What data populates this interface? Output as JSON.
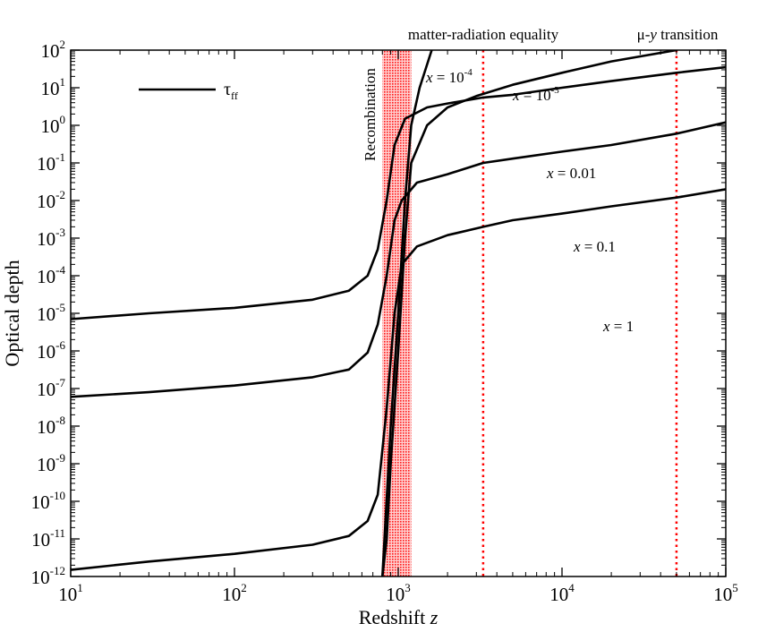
{
  "chart_data": {
    "type": "line",
    "xscale": "log",
    "yscale": "log",
    "xlim": [
      10,
      100000
    ],
    "ylim": [
      1e-12,
      100
    ],
    "xlabel": "Redshift",
    "xlabel_var": "z",
    "ylabel": "Optical depth",
    "x_ticks": [
      {
        "base": "10",
        "exp": "1"
      },
      {
        "base": "10",
        "exp": "2"
      },
      {
        "base": "10",
        "exp": "3"
      },
      {
        "base": "10",
        "exp": "4"
      },
      {
        "base": "10",
        "exp": "5"
      }
    ],
    "y_ticks": [
      {
        "base": "10",
        "exp": "-12"
      },
      {
        "base": "10",
        "exp": "-11"
      },
      {
        "base": "10",
        "exp": "-10"
      },
      {
        "base": "10",
        "exp": "-9"
      },
      {
        "base": "10",
        "exp": "-8"
      },
      {
        "base": "10",
        "exp": "-7"
      },
      {
        "base": "10",
        "exp": "-6"
      },
      {
        "base": "10",
        "exp": "-5"
      },
      {
        "base": "10",
        "exp": "-4"
      },
      {
        "base": "10",
        "exp": "-3"
      },
      {
        "base": "10",
        "exp": "-2"
      },
      {
        "base": "10",
        "exp": "-1"
      },
      {
        "base": "10",
        "exp": "0"
      },
      {
        "base": "10",
        "exp": "1"
      },
      {
        "base": "10",
        "exp": "2"
      }
    ],
    "legend": {
      "symbol": "τ",
      "subscript": "ff",
      "placement": "top-left"
    },
    "recombination_band": {
      "z_min": 800,
      "z_max": 1200,
      "label": "Recombination",
      "color": "#ff0000"
    },
    "vertical_lines": [
      {
        "z": 3300,
        "label": "matter-radiation equality",
        "color": "#ff0000"
      },
      {
        "z": 50000,
        "label": "μ-y transition",
        "label_parts": [
          "μ-",
          "y",
          " transition"
        ],
        "color": "#ff0000"
      }
    ],
    "series": [
      {
        "name": "x = 10^-4",
        "label_parts": {
          "var": "x",
          "eq": " = 10",
          "exp": "-4"
        },
        "points": [
          [
            800,
            1e-12
          ],
          [
            900,
            1e-08
          ],
          [
            1000,
            1e-05
          ],
          [
            1100,
            0.01
          ],
          [
            1200,
            1
          ],
          [
            1350,
            10
          ],
          [
            1600,
            100
          ]
        ]
      },
      {
        "name": "x = 10^-3",
        "label_parts": {
          "var": "x",
          "eq": " = 10",
          "exp": "-3"
        },
        "points": [
          [
            800,
            1e-12
          ],
          [
            850,
            1e-11
          ],
          [
            900,
            1e-09
          ],
          [
            1000,
            1e-06
          ],
          [
            1100,
            0.001
          ],
          [
            1200,
            0.1
          ],
          [
            1500,
            1
          ],
          [
            2000,
            3
          ],
          [
            3000,
            6
          ],
          [
            5000,
            12
          ],
          [
            10000,
            25
          ],
          [
            20000,
            50
          ],
          [
            50000,
            100
          ]
        ]
      },
      {
        "name": "x = 0.01",
        "label_parts": {
          "var": "x",
          "eq": " = 0.01"
        },
        "points": [
          [
            10,
            7e-06
          ],
          [
            30,
            1e-05
          ],
          [
            100,
            1.4e-05
          ],
          [
            300,
            2.3e-05
          ],
          [
            500,
            4e-05
          ],
          [
            650,
            0.0001
          ],
          [
            750,
            0.0005
          ],
          [
            850,
            0.01
          ],
          [
            950,
            0.3
          ],
          [
            1100,
            1.5
          ],
          [
            1500,
            3
          ],
          [
            2000,
            3.8
          ],
          [
            3300,
            5.5
          ],
          [
            5000,
            6.5
          ],
          [
            10000,
            10
          ],
          [
            20000,
            15
          ],
          [
            50000,
            25
          ],
          [
            100000,
            35
          ]
        ]
      },
      {
        "name": "x = 0.1",
        "label_parts": {
          "var": "x",
          "eq": " = 0.1"
        },
        "points": [
          [
            10,
            6e-08
          ],
          [
            30,
            8e-08
          ],
          [
            100,
            1.2e-07
          ],
          [
            300,
            2e-07
          ],
          [
            500,
            3.2e-07
          ],
          [
            650,
            9e-07
          ],
          [
            750,
            5e-06
          ],
          [
            850,
            0.0001
          ],
          [
            950,
            0.003
          ],
          [
            1050,
            0.01
          ],
          [
            1300,
            0.03
          ],
          [
            2000,
            0.05
          ],
          [
            3300,
            0.1
          ],
          [
            5000,
            0.13
          ],
          [
            10000,
            0.2
          ],
          [
            20000,
            0.3
          ],
          [
            50000,
            0.6
          ],
          [
            100000,
            1.2
          ]
        ]
      },
      {
        "name": "x = 1",
        "label_parts": {
          "var": "x",
          "eq": " = 1"
        },
        "points": [
          [
            10,
            1.5e-12
          ],
          [
            30,
            2.5e-12
          ],
          [
            100,
            4e-12
          ],
          [
            300,
            7e-12
          ],
          [
            500,
            1.2e-11
          ],
          [
            650,
            3e-11
          ],
          [
            750,
            1.5e-10
          ],
          [
            850,
            3e-08
          ],
          [
            950,
            1e-05
          ],
          [
            1050,
            0.0002
          ],
          [
            1300,
            0.0006
          ],
          [
            2000,
            0.0012
          ],
          [
            3300,
            0.002
          ],
          [
            5000,
            0.003
          ],
          [
            10000,
            0.0045
          ],
          [
            20000,
            0.007
          ],
          [
            50000,
            0.012
          ],
          [
            100000,
            0.02
          ]
        ]
      }
    ]
  }
}
